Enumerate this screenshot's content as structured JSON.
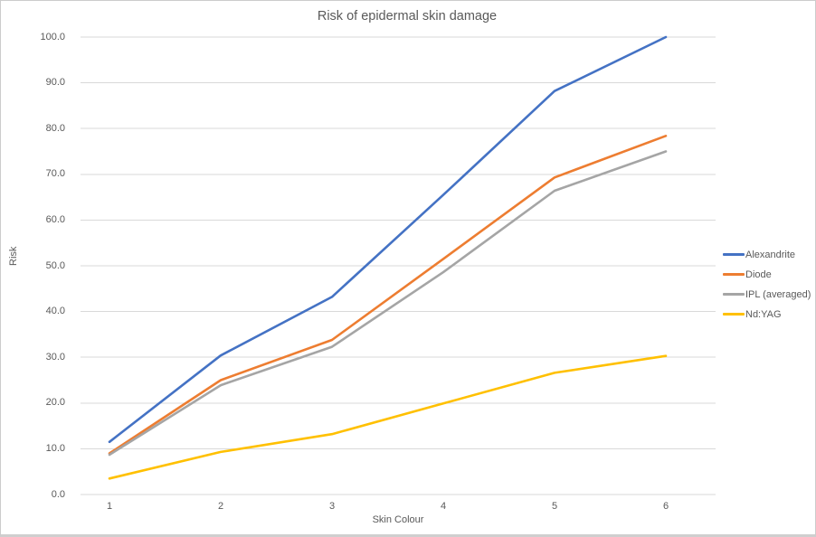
{
  "chart_data": {
    "type": "line",
    "title": "Risk of epidermal skin damage",
    "xlabel": "Skin Colour",
    "ylabel": "Risk",
    "x": [
      1,
      2,
      3,
      4,
      5,
      6
    ],
    "xtick_labels": [
      "1",
      "2",
      "3",
      "4",
      "5",
      "6"
    ],
    "ytick_labels": [
      "0.0",
      "10.0",
      "20.0",
      "30.0",
      "40.0",
      "50.0",
      "60.0",
      "70.0",
      "80.0",
      "90.0",
      "100.0"
    ],
    "ylim": [
      0,
      100
    ],
    "ytick_step": 10,
    "grid": "horizontal",
    "gridline_color": "#d9d9d9",
    "text_color": "#595959",
    "legend_position": "right",
    "series": [
      {
        "name": "Alexandrite",
        "color": "#4472C4",
        "values": [
          11.5,
          30.4,
          43.2,
          65.5,
          88.2,
          100.0
        ]
      },
      {
        "name": "Diode",
        "color": "#ED7D31",
        "values": [
          9.0,
          25.0,
          33.8,
          51.5,
          69.3,
          78.4
        ]
      },
      {
        "name": "IPL (averaged)",
        "color": "#A5A5A5",
        "values": [
          8.7,
          23.9,
          32.3,
          48.6,
          66.4,
          75.0
        ]
      },
      {
        "name": "Nd:YAG",
        "color": "#FFC000",
        "values": [
          3.5,
          9.3,
          13.2,
          19.9,
          26.6,
          30.3
        ]
      }
    ]
  }
}
